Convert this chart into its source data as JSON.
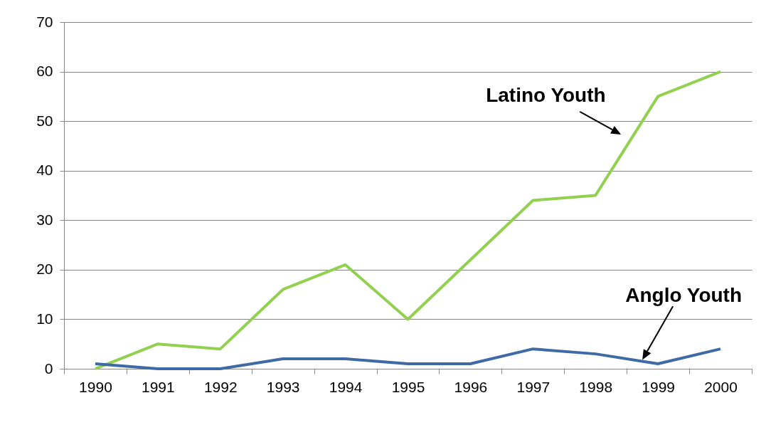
{
  "chart_data": {
    "type": "line",
    "categories": [
      "1990",
      "1991",
      "1992",
      "1993",
      "1994",
      "1995",
      "1996",
      "1997",
      "1998",
      "1999",
      "2000"
    ],
    "series": [
      {
        "name": "Latino Youth",
        "color": "#92d050",
        "values": [
          0,
          5,
          4,
          16,
          21,
          10,
          22,
          34,
          35,
          55,
          60
        ]
      },
      {
        "name": "Anglo Youth",
        "color": "#3e6ba5",
        "values": [
          1,
          0,
          0,
          2,
          2,
          1,
          1,
          4,
          3,
          1,
          4
        ]
      }
    ],
    "ylim": [
      0,
      70
    ],
    "yticks": [
      0,
      10,
      20,
      30,
      40,
      50,
      60,
      70
    ],
    "grid": "y"
  }
}
